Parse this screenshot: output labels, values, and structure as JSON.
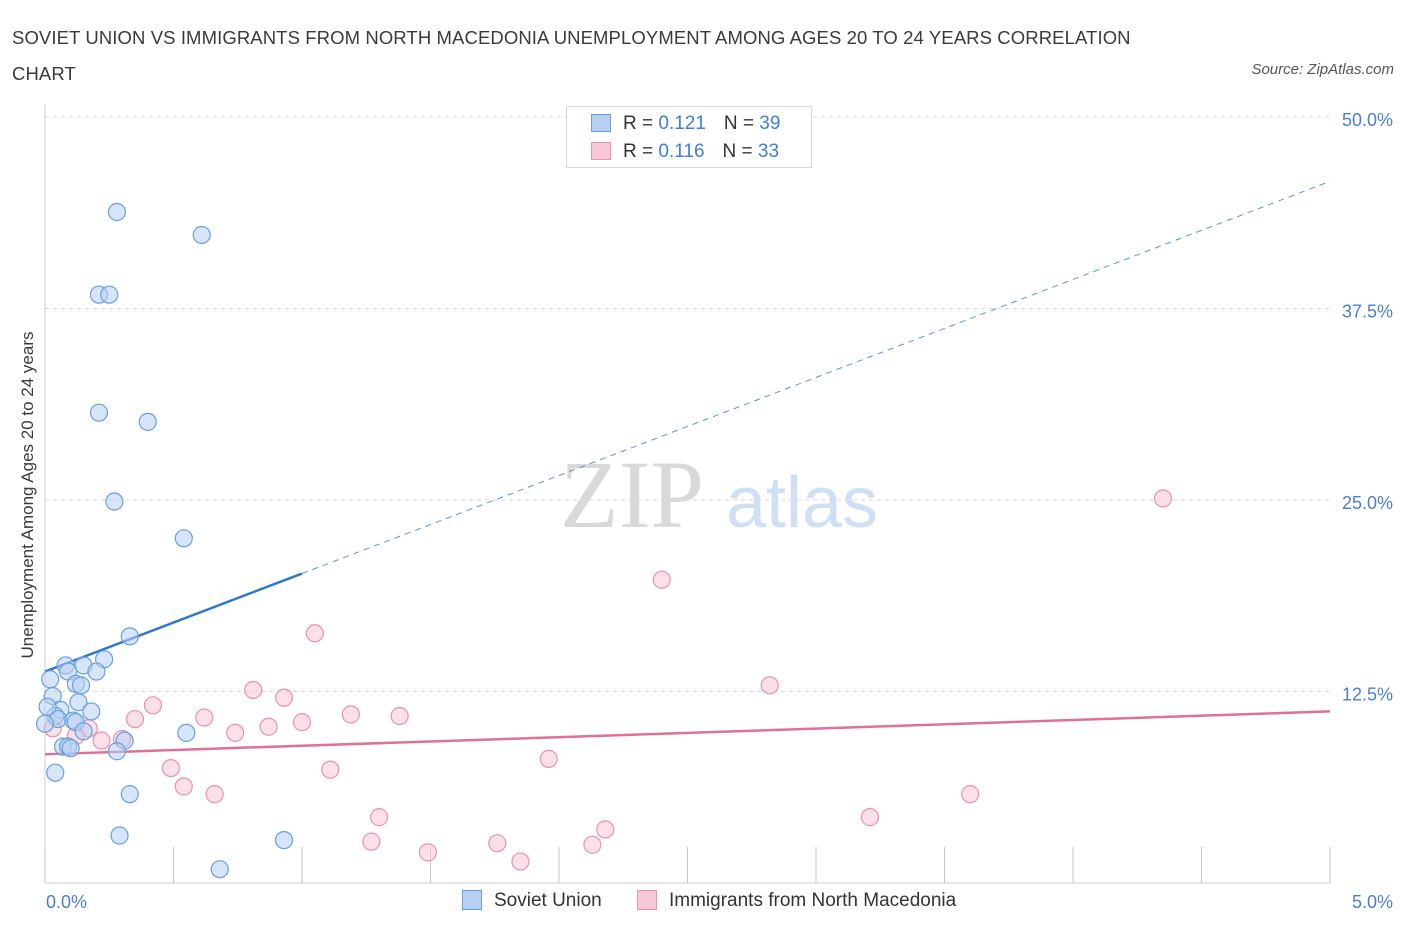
{
  "chart_data": {
    "type": "scatter",
    "title": "SOVIET UNION VS IMMIGRANTS FROM NORTH MACEDONIA UNEMPLOYMENT AMONG AGES 20 TO 24 YEARS CORRELATION CHART",
    "source": "Source: ZipAtlas.com",
    "ylabel": "Unemployment Among Ages 20 to 24 years",
    "xlabel": "",
    "xlim": [
      0,
      5
    ],
    "ylim": [
      0,
      50
    ],
    "x_tick_labels": [
      "0.0%",
      "5.0%"
    ],
    "y_tick_labels": [
      "12.5%",
      "25.0%",
      "37.5%",
      "50.0%"
    ],
    "y_ticks": [
      12.5,
      25,
      37.5,
      50
    ],
    "watermark": "ZIPatlas",
    "colors": {
      "blue_fill": "#b7cff2",
      "blue_stroke": "#6a9ee0",
      "blue_line": "#2f78cf",
      "pink_fill": "#f8c7d6",
      "pink_stroke": "#e991b0",
      "pink_line": "#e07098",
      "axis_text": "#4a7fcf"
    },
    "legend": [
      {
        "r_label": "R = ",
        "r_value": "0.121",
        "n_label": "N = ",
        "n_value": "39"
      },
      {
        "r_label": "R = ",
        "r_value": "0.116",
        "n_label": "N = ",
        "n_value": "33"
      }
    ],
    "series": [
      {
        "name": "Soviet Union",
        "trend": {
          "x0": 0.0,
          "y0": 13.8,
          "x1": 1.0,
          "y1": 20.2,
          "dash_to_x": 5.0,
          "dash_to_y": 45.8
        },
        "points": [
          {
            "x": 0.28,
            "y": 43.8
          },
          {
            "x": 0.61,
            "y": 42.3
          },
          {
            "x": 0.21,
            "y": 38.4
          },
          {
            "x": 0.25,
            "y": 38.4
          },
          {
            "x": 0.21,
            "y": 30.7
          },
          {
            "x": 0.4,
            "y": 30.1
          },
          {
            "x": 0.27,
            "y": 24.9
          },
          {
            "x": 0.54,
            "y": 22.5
          },
          {
            "x": 0.33,
            "y": 16.1
          },
          {
            "x": 0.23,
            "y": 14.6
          },
          {
            "x": 0.08,
            "y": 14.2
          },
          {
            "x": 0.15,
            "y": 14.2
          },
          {
            "x": 0.09,
            "y": 13.8
          },
          {
            "x": 0.2,
            "y": 13.8
          },
          {
            "x": 0.02,
            "y": 13.3
          },
          {
            "x": 0.12,
            "y": 13.0
          },
          {
            "x": 0.14,
            "y": 12.9
          },
          {
            "x": 0.03,
            "y": 12.2
          },
          {
            "x": 0.13,
            "y": 11.8
          },
          {
            "x": 0.06,
            "y": 11.3
          },
          {
            "x": 0.18,
            "y": 11.2
          },
          {
            "x": 0.04,
            "y": 10.9
          },
          {
            "x": 0.05,
            "y": 10.7
          },
          {
            "x": 0.11,
            "y": 10.6
          },
          {
            "x": 0.12,
            "y": 10.5
          },
          {
            "x": 0.0,
            "y": 10.4
          },
          {
            "x": 0.15,
            "y": 9.9
          },
          {
            "x": 0.55,
            "y": 9.8
          },
          {
            "x": 0.31,
            "y": 9.3
          },
          {
            "x": 0.07,
            "y": 8.9
          },
          {
            "x": 0.09,
            "y": 8.9
          },
          {
            "x": 0.1,
            "y": 8.8
          },
          {
            "x": 0.28,
            "y": 8.6
          },
          {
            "x": 0.04,
            "y": 7.2
          },
          {
            "x": 0.33,
            "y": 5.8
          },
          {
            "x": 0.29,
            "y": 3.1
          },
          {
            "x": 0.93,
            "y": 2.8
          },
          {
            "x": 0.68,
            "y": 0.9
          },
          {
            "x": 0.01,
            "y": 11.5
          }
        ]
      },
      {
        "name": "Immigrants from North Macedonia",
        "trend": {
          "x0": 0.0,
          "y0": 8.4,
          "x1": 5.0,
          "y1": 11.2
        },
        "points": [
          {
            "x": 4.35,
            "y": 25.1
          },
          {
            "x": 2.4,
            "y": 19.8
          },
          {
            "x": 1.05,
            "y": 16.3
          },
          {
            "x": 2.82,
            "y": 12.9
          },
          {
            "x": 0.81,
            "y": 12.6
          },
          {
            "x": 0.93,
            "y": 12.1
          },
          {
            "x": 0.42,
            "y": 11.6
          },
          {
            "x": 1.19,
            "y": 11.0
          },
          {
            "x": 1.38,
            "y": 10.9
          },
          {
            "x": 0.62,
            "y": 10.8
          },
          {
            "x": 0.35,
            "y": 10.7
          },
          {
            "x": 1.0,
            "y": 10.5
          },
          {
            "x": 0.87,
            "y": 10.2
          },
          {
            "x": 0.03,
            "y": 10.1
          },
          {
            "x": 0.17,
            "y": 10.1
          },
          {
            "x": 0.74,
            "y": 9.8
          },
          {
            "x": 0.12,
            "y": 9.6
          },
          {
            "x": 0.3,
            "y": 9.4
          },
          {
            "x": 0.22,
            "y": 9.3
          },
          {
            "x": 1.96,
            "y": 8.1
          },
          {
            "x": 0.49,
            "y": 7.5
          },
          {
            "x": 1.11,
            "y": 7.4
          },
          {
            "x": 0.54,
            "y": 6.3
          },
          {
            "x": 0.66,
            "y": 5.8
          },
          {
            "x": 3.6,
            "y": 5.8
          },
          {
            "x": 3.21,
            "y": 4.3
          },
          {
            "x": 1.3,
            "y": 4.3
          },
          {
            "x": 2.18,
            "y": 3.5
          },
          {
            "x": 1.27,
            "y": 2.7
          },
          {
            "x": 1.76,
            "y": 2.6
          },
          {
            "x": 2.13,
            "y": 2.5
          },
          {
            "x": 1.49,
            "y": 2.0
          },
          {
            "x": 1.85,
            "y": 1.4
          }
        ]
      }
    ]
  }
}
